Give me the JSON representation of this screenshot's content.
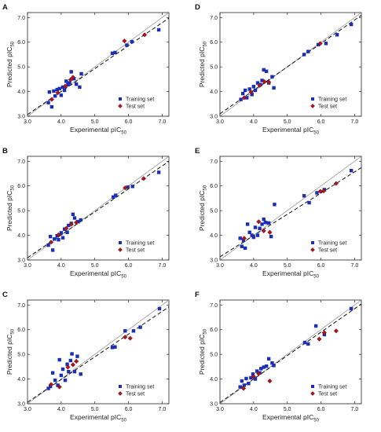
{
  "figure": {
    "xlabel": "Experimental pIC",
    "ylabel": "Predicted pIC",
    "subscript": "50",
    "colors": {
      "training": "#1a2fb5",
      "test": "#b5121b",
      "test_edge": "#3a0a0a",
      "fit_line": "#111111",
      "identity_line": "#888888",
      "axis": "#222222"
    }
  },
  "chart_data": [
    {
      "panel": "A",
      "type": "scatter",
      "xlim": [
        3.0,
        7.2
      ],
      "ylim": [
        3.0,
        7.2
      ],
      "xticks": [
        "3.0",
        "4.0",
        "5.0",
        "6.0",
        "7.0"
      ],
      "yticks": [
        "3.0",
        "4.0",
        "5.0",
        "6.0",
        "7.0"
      ],
      "legend": "bottom-right",
      "series": [
        {
          "name": "Training set",
          "marker": "square",
          "points": [
            [
              3.62,
              3.55
            ],
            [
              3.65,
              3.98
            ],
            [
              3.72,
              3.38
            ],
            [
              3.78,
              4.02
            ],
            [
              3.82,
              3.82
            ],
            [
              3.88,
              4.08
            ],
            [
              3.95,
              4.12
            ],
            [
              4.0,
              3.85
            ],
            [
              4.05,
              4.18
            ],
            [
              4.1,
              4.05
            ],
            [
              4.15,
              4.42
            ],
            [
              4.2,
              4.28
            ],
            [
              4.25,
              4.35
            ],
            [
              4.3,
              4.8
            ],
            [
              4.38,
              4.52
            ],
            [
              4.45,
              4.3
            ],
            [
              4.55,
              4.18
            ],
            [
              4.6,
              4.72
            ],
            [
              5.52,
              5.55
            ],
            [
              5.6,
              5.58
            ],
            [
              5.95,
              5.88
            ],
            [
              6.1,
              6.02
            ],
            [
              6.9,
              6.5
            ]
          ]
        },
        {
          "name": "Test set",
          "marker": "diamond",
          "points": [
            [
              3.72,
              3.68
            ],
            [
              3.9,
              3.95
            ],
            [
              4.12,
              4.22
            ],
            [
              4.28,
              4.48
            ],
            [
              4.35,
              4.58
            ],
            [
              5.88,
              6.05
            ],
            [
              6.48,
              6.3
            ]
          ]
        }
      ],
      "fit": {
        "intercept": 0.28,
        "slope": 0.93
      },
      "identity": true
    },
    {
      "panel": "B",
      "type": "scatter",
      "xlim": [
        3.0,
        7.2
      ],
      "ylim": [
        3.0,
        7.2
      ],
      "xticks": [
        "3.0",
        "4.0",
        "5.0",
        "6.0",
        "7.0"
      ],
      "yticks": [
        "3.0",
        "4.0",
        "5.0",
        "6.0",
        "7.0"
      ],
      "legend": "bottom-right",
      "series": [
        {
          "name": "Training set",
          "marker": "square",
          "points": [
            [
              3.62,
              3.6
            ],
            [
              3.68,
              3.95
            ],
            [
              3.75,
              3.4
            ],
            [
              3.8,
              3.85
            ],
            [
              3.88,
              3.98
            ],
            [
              3.92,
              3.82
            ],
            [
              4.0,
              4.1
            ],
            [
              4.05,
              3.9
            ],
            [
              4.1,
              4.25
            ],
            [
              4.18,
              4.12
            ],
            [
              4.22,
              4.4
            ],
            [
              4.3,
              4.48
            ],
            [
              4.35,
              4.85
            ],
            [
              4.4,
              4.7
            ],
            [
              4.5,
              4.55
            ],
            [
              4.58,
              4.62
            ],
            [
              5.55,
              5.55
            ],
            [
              5.62,
              5.62
            ],
            [
              5.98,
              5.95
            ],
            [
              6.12,
              5.98
            ],
            [
              6.9,
              6.55
            ]
          ]
        },
        {
          "name": "Test set",
          "marker": "diamond",
          "points": [
            [
              3.7,
              3.72
            ],
            [
              3.92,
              4.02
            ],
            [
              4.15,
              4.28
            ],
            [
              4.3,
              4.45
            ],
            [
              4.45,
              4.52
            ],
            [
              5.9,
              5.92
            ],
            [
              6.45,
              6.3
            ]
          ]
        }
      ],
      "fit": {
        "intercept": 0.3,
        "slope": 0.93
      },
      "identity": true
    },
    {
      "panel": "C",
      "type": "scatter",
      "xlim": [
        3.0,
        7.2
      ],
      "ylim": [
        3.0,
        7.2
      ],
      "xticks": [
        "3.0",
        "4.0",
        "5.0",
        "6.0",
        "7.0"
      ],
      "yticks": [
        "3.0",
        "4.0",
        "5.0",
        "6.0",
        "7.0"
      ],
      "legend": "bottom-right",
      "series": [
        {
          "name": "Training set",
          "marker": "square",
          "points": [
            [
              3.62,
              3.62
            ],
            [
              3.68,
              3.7
            ],
            [
              3.75,
              4.25
            ],
            [
              3.82,
              3.95
            ],
            [
              3.9,
              3.75
            ],
            [
              3.95,
              4.78
            ],
            [
              4.0,
              4.15
            ],
            [
              4.05,
              4.4
            ],
            [
              4.12,
              3.95
            ],
            [
              4.18,
              4.6
            ],
            [
              4.22,
              4.3
            ],
            [
              4.28,
              4.75
            ],
            [
              4.32,
              5.02
            ],
            [
              4.4,
              4.3
            ],
            [
              4.48,
              4.92
            ],
            [
              4.58,
              4.2
            ],
            [
              5.52,
              5.28
            ],
            [
              5.6,
              5.3
            ],
            [
              5.9,
              5.95
            ],
            [
              6.15,
              5.95
            ],
            [
              6.35,
              6.1
            ],
            [
              6.92,
              6.85
            ]
          ]
        },
        {
          "name": "Test set",
          "marker": "diamond",
          "points": [
            [
              3.7,
              3.78
            ],
            [
              3.95,
              3.68
            ],
            [
              4.2,
              4.48
            ],
            [
              4.35,
              4.58
            ],
            [
              4.45,
              4.72
            ],
            [
              5.9,
              5.7
            ],
            [
              6.05,
              5.65
            ]
          ]
        }
      ],
      "fit": {
        "intercept": 0.3,
        "slope": 0.92
      },
      "identity": true
    },
    {
      "panel": "D",
      "type": "scatter",
      "xlim": [
        3.0,
        7.2
      ],
      "ylim": [
        3.0,
        7.2
      ],
      "xticks": [
        "3.0",
        "4.0",
        "5.0",
        "6.0",
        "7.0"
      ],
      "yticks": [
        "3.0",
        "4.0",
        "5.0",
        "6.0",
        "7.0"
      ],
      "legend": "bottom-right",
      "series": [
        {
          "name": "Training set",
          "marker": "square",
          "points": [
            [
              3.62,
              3.68
            ],
            [
              3.68,
              3.92
            ],
            [
              3.75,
              4.05
            ],
            [
              3.8,
              3.75
            ],
            [
              3.88,
              4.1
            ],
            [
              3.95,
              3.88
            ],
            [
              4.0,
              4.2
            ],
            [
              4.05,
              4.05
            ],
            [
              4.12,
              4.35
            ],
            [
              4.2,
              4.28
            ],
            [
              4.25,
              4.45
            ],
            [
              4.3,
              4.88
            ],
            [
              4.38,
              4.82
            ],
            [
              4.45,
              4.35
            ],
            [
              4.55,
              4.6
            ],
            [
              4.6,
              4.15
            ],
            [
              5.5,
              5.5
            ],
            [
              5.62,
              5.62
            ],
            [
              5.92,
              5.9
            ],
            [
              6.15,
              5.95
            ],
            [
              6.48,
              6.3
            ],
            [
              6.9,
              6.72
            ]
          ]
        },
        {
          "name": "Test set",
          "marker": "diamond",
          "points": [
            [
              3.72,
              3.75
            ],
            [
              3.92,
              3.98
            ],
            [
              4.18,
              4.25
            ],
            [
              4.32,
              4.4
            ],
            [
              4.45,
              4.38
            ],
            [
              5.98,
              5.95
            ]
          ]
        }
      ],
      "fit": {
        "intercept": 0.25,
        "slope": 0.95
      },
      "identity": true
    },
    {
      "panel": "E",
      "type": "scatter",
      "xlim": [
        3.0,
        7.2
      ],
      "ylim": [
        3.0,
        7.2
      ],
      "xticks": [
        "3.0",
        "4.0",
        "5.0",
        "6.0",
        "7.0"
      ],
      "yticks": [
        "3.0",
        "4.0",
        "5.0",
        "6.0",
        "7.0"
      ],
      "legend": "bottom-right",
      "series": [
        {
          "name": "Training set",
          "marker": "square",
          "points": [
            [
              3.6,
              3.88
            ],
            [
              3.65,
              3.55
            ],
            [
              3.7,
              3.8
            ],
            [
              3.75,
              3.48
            ],
            [
              3.82,
              4.45
            ],
            [
              3.88,
              4.12
            ],
            [
              3.95,
              4.0
            ],
            [
              4.0,
              3.92
            ],
            [
              4.05,
              4.32
            ],
            [
              4.12,
              4.0
            ],
            [
              4.18,
              4.28
            ],
            [
              4.25,
              4.45
            ],
            [
              4.3,
              4.65
            ],
            [
              4.35,
              4.52
            ],
            [
              4.45,
              4.5
            ],
            [
              4.52,
              3.95
            ],
            [
              4.62,
              5.25
            ],
            [
              5.5,
              5.6
            ],
            [
              5.65,
              5.32
            ],
            [
              5.88,
              5.72
            ],
            [
              6.1,
              5.85
            ],
            [
              6.9,
              6.62
            ]
          ]
        },
        {
          "name": "Test set",
          "marker": "diamond",
          "points": [
            [
              3.72,
              3.88
            ],
            [
              4.15,
              4.55
            ],
            [
              4.3,
              4.18
            ],
            [
              4.48,
              4.12
            ],
            [
              5.98,
              5.78
            ],
            [
              6.08,
              5.8
            ],
            [
              6.45,
              6.1
            ]
          ]
        }
      ],
      "fit": {
        "intercept": 0.55,
        "slope": 0.86
      },
      "identity": true
    },
    {
      "panel": "F",
      "type": "scatter",
      "xlim": [
        3.0,
        7.2
      ],
      "ylim": [
        3.0,
        7.2
      ],
      "xticks": [
        "3.0",
        "4.0",
        "5.0",
        "6.0",
        "7.0"
      ],
      "yticks": [
        "3.0",
        "4.0",
        "5.0",
        "6.0",
        "7.0"
      ],
      "legend": "bottom-right",
      "series": [
        {
          "name": "Training set",
          "marker": "square",
          "points": [
            [
              3.6,
              3.68
            ],
            [
              3.65,
              3.92
            ],
            [
              3.72,
              3.75
            ],
            [
              3.78,
              4.02
            ],
            [
              3.85,
              3.82
            ],
            [
              3.92,
              4.05
            ],
            [
              3.98,
              4.2
            ],
            [
              4.05,
              4.0
            ],
            [
              4.1,
              4.32
            ],
            [
              4.18,
              4.25
            ],
            [
              4.22,
              4.42
            ],
            [
              4.3,
              4.48
            ],
            [
              4.38,
              4.52
            ],
            [
              4.45,
              4.82
            ],
            [
              4.55,
              4.65
            ],
            [
              4.6,
              4.55
            ],
            [
              5.52,
              5.48
            ],
            [
              5.62,
              5.42
            ],
            [
              5.85,
              6.15
            ],
            [
              6.1,
              5.8
            ],
            [
              6.9,
              6.85
            ]
          ]
        },
        {
          "name": "Test set",
          "marker": "diamond",
          "points": [
            [
              3.7,
              3.62
            ],
            [
              4.0,
              4.1
            ],
            [
              4.15,
              4.22
            ],
            [
              4.48,
              3.92
            ],
            [
              5.95,
              5.62
            ],
            [
              6.1,
              5.88
            ],
            [
              6.45,
              5.95
            ]
          ]
        }
      ],
      "fit": {
        "intercept": 0.2,
        "slope": 0.95
      },
      "identity": true
    }
  ]
}
